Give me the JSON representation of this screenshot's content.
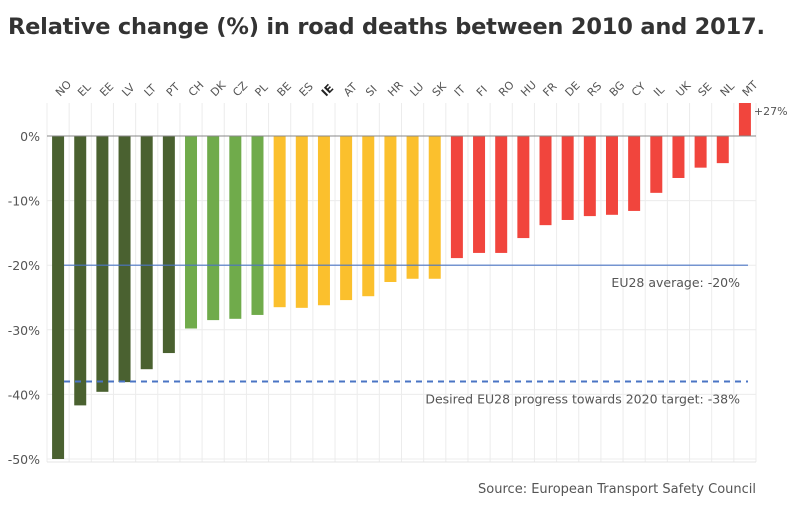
{
  "chart_data": {
    "type": "bar",
    "title": "Relative change (%) in road deaths between 2010 and 2017.",
    "xlabel": "",
    "ylabel": "",
    "ylim": [
      -50,
      5
    ],
    "yticks": [
      0,
      -10,
      -20,
      -30,
      -40,
      -50
    ],
    "ytick_labels": [
      "0%",
      "-10%",
      "-20%",
      "-30%",
      "-40%",
      "-50%"
    ],
    "grid": true,
    "categories": [
      "NO",
      "EL",
      "EE",
      "LV",
      "LT",
      "PT",
      "CH",
      "DK",
      "CZ",
      "PL",
      "BE",
      "ES",
      "IE",
      "AT",
      "SI",
      "HR",
      "LU",
      "SK",
      "IT",
      "FI",
      "RO",
      "HU",
      "FR",
      "DE",
      "RS",
      "BG",
      "CY",
      "IL",
      "UK",
      "SE",
      "NL",
      "MT"
    ],
    "highlighted_category": "IE",
    "values": [
      -50,
      -41.7,
      -39.6,
      -38.1,
      -36.1,
      -33.6,
      -29.8,
      -28.5,
      -28.3,
      -27.7,
      -26.5,
      -26.6,
      -26.2,
      -25.4,
      -24.8,
      -22.6,
      -22.1,
      -22.1,
      -18.9,
      -18.1,
      -18.1,
      -15.8,
      -13.8,
      -13.0,
      -12.4,
      -12.2,
      -11.6,
      -8.8,
      -6.5,
      -4.9,
      -4.2,
      27
    ],
    "groups": [
      "dark-green",
      "dark-green",
      "dark-green",
      "dark-green",
      "dark-green",
      "dark-green",
      "light-green",
      "light-green",
      "light-green",
      "light-green",
      "yellow",
      "yellow",
      "yellow",
      "yellow",
      "yellow",
      "yellow",
      "yellow",
      "yellow",
      "red",
      "red",
      "red",
      "red",
      "red",
      "red",
      "red",
      "red",
      "red",
      "red",
      "red",
      "red",
      "red",
      "red"
    ],
    "colors": {
      "dark-green": "#4a6130",
      "light-green": "#70ab4b",
      "yellow": "#fbc02d",
      "red": "#f1453d"
    },
    "truncated_bars": [
      {
        "category": "MT",
        "value": 27,
        "label": "+27%"
      }
    ],
    "reference_lines": [
      {
        "name": "eu-average-line",
        "value": -20,
        "style": "solid",
        "color": "#4a74c4",
        "label": "EU28 average: -20%"
      },
      {
        "name": "target-line",
        "value": -38,
        "style": "dashed",
        "color": "#4a74c4",
        "label": "Desired EU28 progress towards 2020 target: -38%"
      }
    ],
    "source": "Source: European Transport Safety Council"
  }
}
